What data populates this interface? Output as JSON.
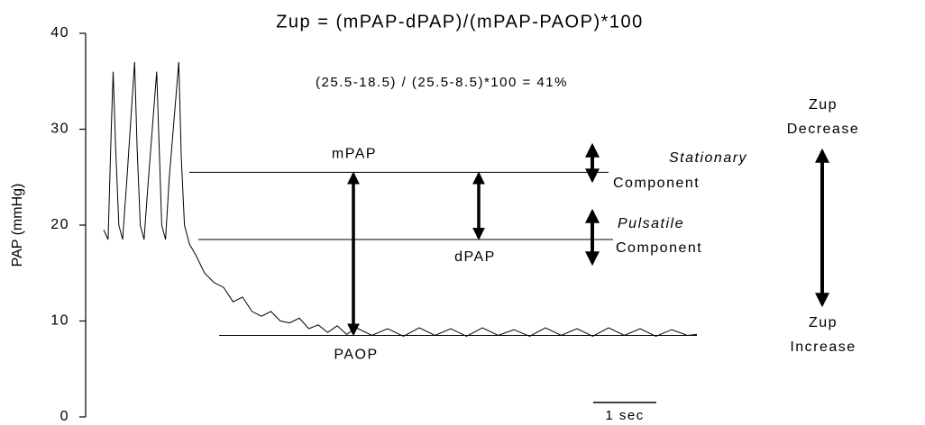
{
  "chart_data": {
    "type": "line",
    "title": "Zup = (mPAP-dPAP)/(mPAP-PAOP)*100",
    "subtitle": "(25.5-18.5) / (25.5-8.5)*100 = 41%",
    "y_label": "PAP (mmHg)",
    "ylim": [
      0,
      40
    ],
    "yticks": [
      0,
      10,
      20,
      30,
      40
    ],
    "xlim": [
      0,
      9.4
    ],
    "scale_bar": "1 sec",
    "series": [
      {
        "color": "#000000",
        "x": [
          0,
          0.07,
          0.12,
          0.15,
          0.19,
          0.24,
          0.3,
          0.37,
          0.49,
          0.53,
          0.58,
          0.64,
          0.7,
          0.84,
          0.88,
          0.92,
          0.98,
          1.04,
          1.19,
          1.23,
          1.28,
          1.36,
          1.45,
          1.6,
          1.75,
          1.9,
          2.05,
          2.2,
          2.35,
          2.5,
          2.65,
          2.8,
          2.95,
          3.1,
          3.25,
          3.4,
          3.55,
          3.7,
          3.85,
          4.0,
          4.25,
          4.5,
          4.75,
          5.0,
          5.25,
          5.5,
          5.75,
          6.0,
          6.25,
          6.5,
          6.75,
          7.0,
          7.25,
          7.5,
          7.75,
          8.0,
          8.25,
          8.5,
          8.75,
          9.0,
          9.25,
          9.4
        ],
        "values": [
          19.5,
          18.5,
          30,
          36,
          28,
          20,
          18.5,
          25,
          37,
          28,
          20,
          18.5,
          24,
          36,
          28,
          20,
          18.5,
          25,
          37,
          27,
          20,
          18,
          17,
          15,
          14,
          13.5,
          12,
          12.5,
          11,
          10.5,
          11,
          10,
          9.8,
          10.3,
          9.2,
          9.6,
          8.8,
          9.5,
          8.6,
          9.3,
          8.5,
          9.2,
          8.4,
          9.3,
          8.5,
          9.2,
          8.4,
          9.3,
          8.5,
          9.1,
          8.4,
          9.3,
          8.5,
          9.2,
          8.4,
          9.3,
          8.5,
          9.2,
          8.4,
          9.1,
          8.5,
          8.6
        ]
      }
    ],
    "reference_lines": [
      {
        "label": "mPAP",
        "value": 25.5
      },
      {
        "label": "dPAP",
        "value": 18.5
      },
      {
        "label": "PAOP",
        "value": 8.5
      }
    ],
    "annotations": {
      "stationary": "Stationary",
      "stationary_component": "Component",
      "pulsatile": "Pulsatile",
      "pulsatile_component": "Component",
      "zup_top": "Zup",
      "decrease": "Decrease",
      "zup_bottom": "Zup",
      "increase": "Increase"
    }
  }
}
